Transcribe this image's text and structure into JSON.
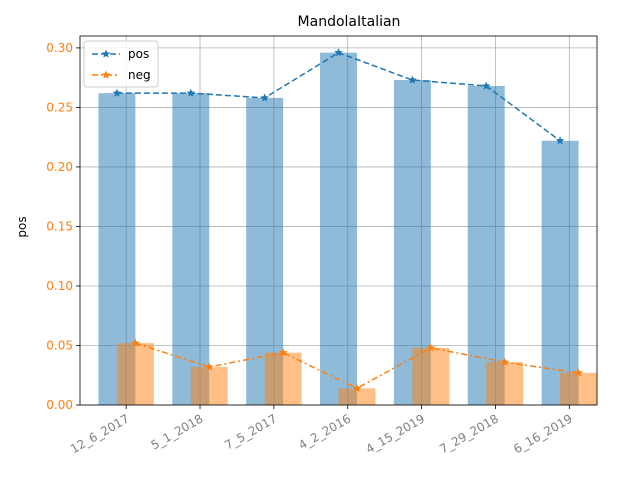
{
  "chart_data": {
    "type": "bar",
    "title": "MandolaItalian",
    "xlabel": "",
    "ylabel": "pos",
    "ylim": [
      0,
      0.31
    ],
    "yticks": [
      "0.00",
      "0.05",
      "0.10",
      "0.15",
      "0.20",
      "0.25",
      "0.30"
    ],
    "grid": true,
    "legend_position": "top-left",
    "categories": [
      "12_6_2017",
      "5_1_2018",
      "7_5_2017",
      "4_2_2016",
      "4_15_2019",
      "7_29_2018",
      "6_16_2019"
    ],
    "series": [
      {
        "name": "pos",
        "values": [
          0.262,
          0.262,
          0.258,
          0.296,
          0.273,
          0.268,
          0.222
        ],
        "color": "#1f77b4",
        "bar_color": "#8fbbd9"
      },
      {
        "name": "neg",
        "values": [
          0.052,
          0.032,
          0.044,
          0.014,
          0.048,
          0.036,
          0.027
        ],
        "color": "#ff7f0e",
        "bar_color": "#ffbf86"
      }
    ],
    "ytick_color": "#ff7f0e",
    "xtick_color": "#808080"
  }
}
